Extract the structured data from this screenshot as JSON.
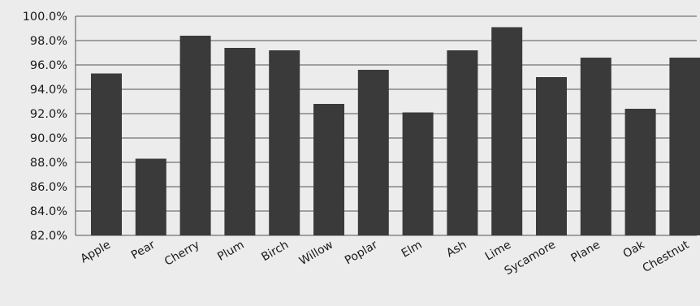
{
  "chart_data": {
    "type": "bar",
    "categories": [
      "Apple",
      "Pear",
      "Cherry",
      "Plum",
      "Birch",
      "Willow",
      "Poplar",
      "Elm",
      "Ash",
      "Lime",
      "Sycamore",
      "Plane",
      "Oak",
      "Chestnut"
    ],
    "values": [
      95.3,
      88.3,
      98.4,
      97.4,
      97.2,
      92.8,
      95.6,
      92.1,
      97.2,
      99.1,
      95.0,
      96.6,
      92.4,
      96.6
    ],
    "title": "",
    "xlabel": "",
    "ylabel": "",
    "ylim": [
      82,
      100
    ],
    "yticks": [
      "82.0%",
      "84.0%",
      "86.0%",
      "88.0%",
      "90.0%",
      "92.0%",
      "94.0%",
      "96.0%",
      "98.0%",
      "100.0%"
    ],
    "grid": true,
    "bar_color": "#3a3a3a",
    "grid_color": "#555555",
    "background_color": "#ececec"
  }
}
